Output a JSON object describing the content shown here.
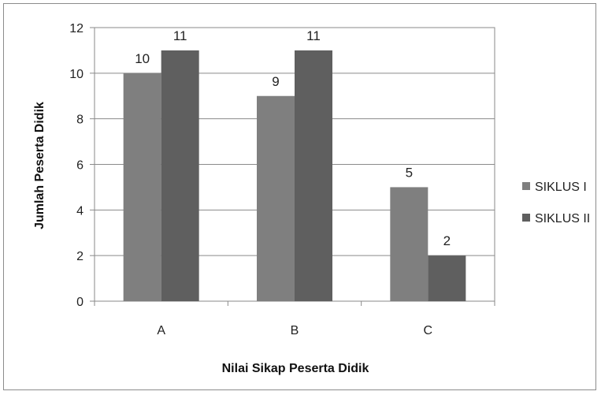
{
  "chart_data": {
    "type": "bar",
    "title": "",
    "xlabel": "Nilai Sikap Peserta Didik",
    "ylabel": "Jumlah Peserta Didik",
    "categories": [
      "A",
      "B",
      "C"
    ],
    "series": [
      {
        "name": "SIKLUS I",
        "values": [
          10,
          9,
          5
        ],
        "color": "#7f7f7f"
      },
      {
        "name": "SIKLUS II",
        "values": [
          11,
          11,
          2
        ],
        "color": "#5f5f5f"
      }
    ],
    "ylim": [
      0,
      12
    ],
    "yticks": [
      "0",
      "2",
      "4",
      "6",
      "8",
      "10",
      "12"
    ],
    "grid": true,
    "legend_position": "right",
    "data_labels": true
  }
}
